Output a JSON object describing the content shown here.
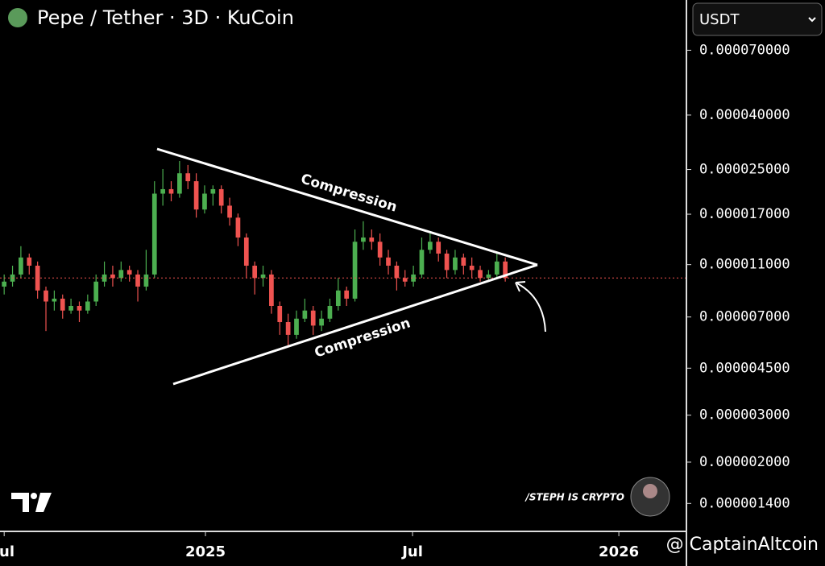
{
  "chart_data": {
    "type": "candlestick",
    "title": "Pepe / Tether · 3D · KuCoin",
    "currency": "USDT",
    "log_y": true,
    "ylim": [
      1.1e-06,
      0.000108
    ],
    "yticks": [
      {
        "value": 7e-05,
        "label": "0.000070000"
      },
      {
        "value": 4e-05,
        "label": "0.000040000"
      },
      {
        "value": 2.5e-05,
        "label": "0.000025000"
      },
      {
        "value": 1.7e-05,
        "label": "0.000017000"
      },
      {
        "value": 1.1e-05,
        "label": "0.000011000"
      },
      {
        "value": 7e-06,
        "label": "0.000007000"
      },
      {
        "value": 4.5e-06,
        "label": "0.000004500"
      },
      {
        "value": 3e-06,
        "label": "0.000003000"
      },
      {
        "value": 2e-06,
        "label": "0.000002000"
      },
      {
        "value": 1.4e-06,
        "label": "0.000001400"
      }
    ],
    "xlim": [
      -0.5,
      81.5
    ],
    "xticks": [
      {
        "value": 0,
        "label": "Jul"
      },
      {
        "value": 24.1,
        "label": "2025"
      },
      {
        "value": 48.9,
        "label": "Jul"
      },
      {
        "value": 73.6,
        "label": "2026"
      }
    ],
    "up_color": "#4caf50",
    "down_color": "#ef5350",
    "ohlc": [
      [
        9.1e-06,
        1.01e-05,
        8.5e-06,
        9.5e-06
      ],
      [
        9.5e-06,
        1.09e-05,
        9.1e-06,
        1.01e-05
      ],
      [
        1.01e-05,
        1.29e-05,
        9.8e-06,
        1.17e-05
      ],
      [
        1.17e-05,
        1.21e-05,
        1.01e-05,
        1.09e-05
      ],
      [
        1.09e-05,
        1.13e-05,
        8.2e-06,
        8.8e-06
      ],
      [
        8.8e-06,
        9.1e-06,
        6.2e-06,
        8e-06
      ],
      [
        8e-06,
        8.8e-06,
        7.4e-06,
        8.2e-06
      ],
      [
        8.2e-06,
        8.5e-06,
        6.9e-06,
        7.4e-06
      ],
      [
        7.4e-06,
        8.2e-06,
        7.2e-06,
        7.7e-06
      ],
      [
        7.7e-06,
        8e-06,
        6.7e-06,
        7.4e-06
      ],
      [
        7.4e-06,
        8.5e-06,
        7.2e-06,
        8e-06
      ],
      [
        8e-06,
        1.01e-05,
        7.7e-06,
        9.5e-06
      ],
      [
        9.5e-06,
        1.13e-05,
        9.1e-06,
        1.01e-05
      ],
      [
        1.01e-05,
        1.09e-05,
        9.1e-06,
        9.8e-06
      ],
      [
        9.8e-06,
        1.13e-05,
        9.5e-06,
        1.05e-05
      ],
      [
        1.05e-05,
        1.09e-05,
        9.5e-06,
        1.01e-05
      ],
      [
        1.01e-05,
        1.05e-05,
        8e-06,
        9.1e-06
      ],
      [
        9.1e-06,
        1.25e-05,
        8.8e-06,
        1.01e-05
      ],
      [
        1.01e-05,
        2.26e-05,
        9.8e-06,
        2.03e-05
      ],
      [
        2.03e-05,
        2.51e-05,
        1.83e-05,
        2.11e-05
      ],
      [
        2.11e-05,
        2.26e-05,
        1.9e-05,
        2.03e-05
      ],
      [
        2.03e-05,
        2.69e-05,
        1.96e-05,
        2.42e-05
      ],
      [
        2.42e-05,
        2.6e-05,
        2.11e-05,
        2.26e-05
      ],
      [
        2.26e-05,
        2.42e-05,
        1.65e-05,
        1.77e-05
      ],
      [
        1.77e-05,
        2.18e-05,
        1.71e-05,
        2.03e-05
      ],
      [
        2.03e-05,
        2.18e-05,
        1.83e-05,
        2.11e-05
      ],
      [
        2.11e-05,
        2.18e-05,
        1.71e-05,
        1.83e-05
      ],
      [
        1.83e-05,
        1.96e-05,
        1.54e-05,
        1.65e-05
      ],
      [
        1.65e-05,
        1.71e-05,
        1.29e-05,
        1.39e-05
      ],
      [
        1.39e-05,
        1.44e-05,
        9.8e-06,
        1.09e-05
      ],
      [
        1.09e-05,
        1.13e-05,
        8.5e-06,
        9.8e-06
      ],
      [
        9.8e-06,
        1.09e-05,
        9.1e-06,
        1.01e-05
      ],
      [
        1.01e-05,
        1.05e-05,
        7.2e-06,
        7.7e-06
      ],
      [
        7.7e-06,
        8e-06,
        6e-06,
        6.7e-06
      ],
      [
        6.7e-06,
        7.2e-06,
        5.4e-06,
        6e-06
      ],
      [
        6e-06,
        7.4e-06,
        5.8e-06,
        6.9e-06
      ],
      [
        6.9e-06,
        8.2e-06,
        6.7e-06,
        7.4e-06
      ],
      [
        7.4e-06,
        7.7e-06,
        6e-06,
        6.5e-06
      ],
      [
        6.5e-06,
        7.4e-06,
        6.2e-06,
        6.9e-06
      ],
      [
        6.9e-06,
        8.2e-06,
        6.7e-06,
        7.7e-06
      ],
      [
        7.7e-06,
        9.8e-06,
        7.4e-06,
        8.8e-06
      ],
      [
        8.8e-06,
        9.1e-06,
        7.7e-06,
        8.2e-06
      ],
      [
        8.2e-06,
        1.49e-05,
        8e-06,
        1.34e-05
      ],
      [
        1.34e-05,
        1.6e-05,
        1.25e-05,
        1.39e-05
      ],
      [
        1.39e-05,
        1.49e-05,
        1.25e-05,
        1.34e-05
      ],
      [
        1.34e-05,
        1.44e-05,
        1.09e-05,
        1.17e-05
      ],
      [
        1.17e-05,
        1.25e-05,
        1.01e-05,
        1.09e-05
      ],
      [
        1.09e-05,
        1.13e-05,
        8.8e-06,
        9.8e-06
      ],
      [
        9.8e-06,
        1.05e-05,
        9.1e-06,
        9.5e-06
      ],
      [
        9.5e-06,
        1.09e-05,
        9.1e-06,
        1.01e-05
      ],
      [
        1.01e-05,
        1.39e-05,
        9.8e-06,
        1.25e-05
      ],
      [
        1.25e-05,
        1.44e-05,
        1.21e-05,
        1.34e-05
      ],
      [
        1.34e-05,
        1.39e-05,
        1.13e-05,
        1.21e-05
      ],
      [
        1.21e-05,
        1.25e-05,
        9.8e-06,
        1.05e-05
      ],
      [
        1.05e-05,
        1.25e-05,
        1.01e-05,
        1.17e-05
      ],
      [
        1.17e-05,
        1.21e-05,
        1.01e-05,
        1.09e-05
      ],
      [
        1.09e-05,
        1.17e-05,
        9.8e-06,
        1.05e-05
      ],
      [
        1.05e-05,
        1.09e-05,
        9.5e-06,
        9.8e-06
      ],
      [
        9.8e-06,
        1.05e-05,
        9.5e-06,
        1.01e-05
      ],
      [
        1.01e-05,
        1.21e-05,
        9.8e-06,
        1.13e-05
      ],
      [
        1.13e-05,
        1.17e-05,
        9.5e-06,
        9.8e-06
      ]
    ],
    "annotations": [
      "Compression",
      "Compression"
    ],
    "watermarks": [
      "/STEPH IS CRYPTO",
      "@ CaptainAltcoin"
    ]
  }
}
